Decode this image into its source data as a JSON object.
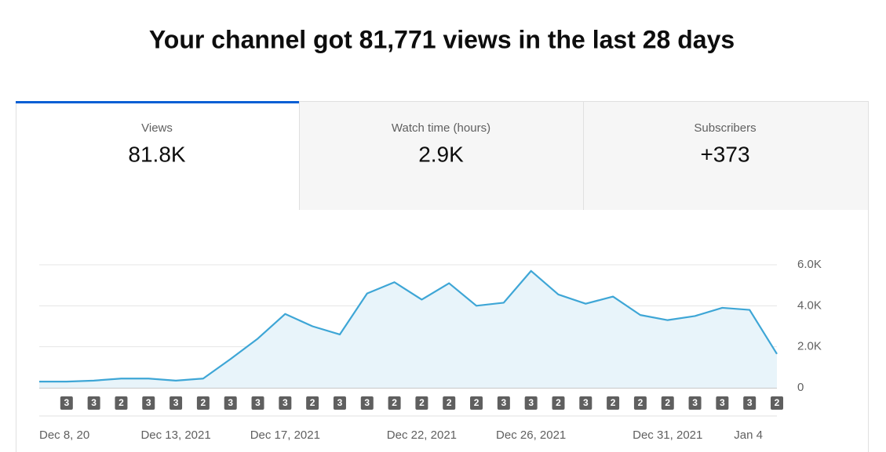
{
  "header": {
    "title": "Your channel got 81,771 views in the last 28 days"
  },
  "tabs": [
    {
      "label": "Views",
      "value": "81.8K"
    },
    {
      "label": "Watch time (hours)",
      "value": "2.9K"
    },
    {
      "label": "Subscribers",
      "value": "+373"
    }
  ],
  "chart_data": {
    "type": "area",
    "categories": [
      "Dec 8, 20",
      null,
      null,
      null,
      null,
      "Dec 13, 2021",
      null,
      null,
      null,
      "Dec 17, 2021",
      null,
      null,
      null,
      null,
      "Dec 22, 2021",
      null,
      null,
      null,
      "Dec 26, 2021",
      null,
      null,
      null,
      null,
      "Dec 31, 2021",
      null,
      null,
      null,
      "Jan 4"
    ],
    "values": [
      300,
      300,
      350,
      450,
      450,
      350,
      450,
      1400,
      2400,
      3600,
      3000,
      2600,
      4600,
      5150,
      4300,
      5100,
      4000,
      4150,
      5700,
      4550,
      4100,
      4450,
      3550,
      3300,
      3500,
      3900,
      3800,
      1650
    ],
    "color": "#3ea6d6",
    "fill": "#e8f4fa",
    "upload_counts": [
      null,
      3,
      3,
      2,
      3,
      3,
      2,
      3,
      3,
      3,
      2,
      3,
      3,
      2,
      2,
      2,
      2,
      3,
      3,
      2,
      3,
      2,
      2,
      2,
      3,
      3,
      3,
      2
    ],
    "ylim": [
      0,
      6000
    ],
    "yticks": [
      0,
      {
        "value": 2000,
        "label": "2.0K"
      },
      {
        "value": 4000,
        "label": "4.0K"
      },
      {
        "value": 6000,
        "label": "6.0K"
      }
    ],
    "grid": true
  }
}
